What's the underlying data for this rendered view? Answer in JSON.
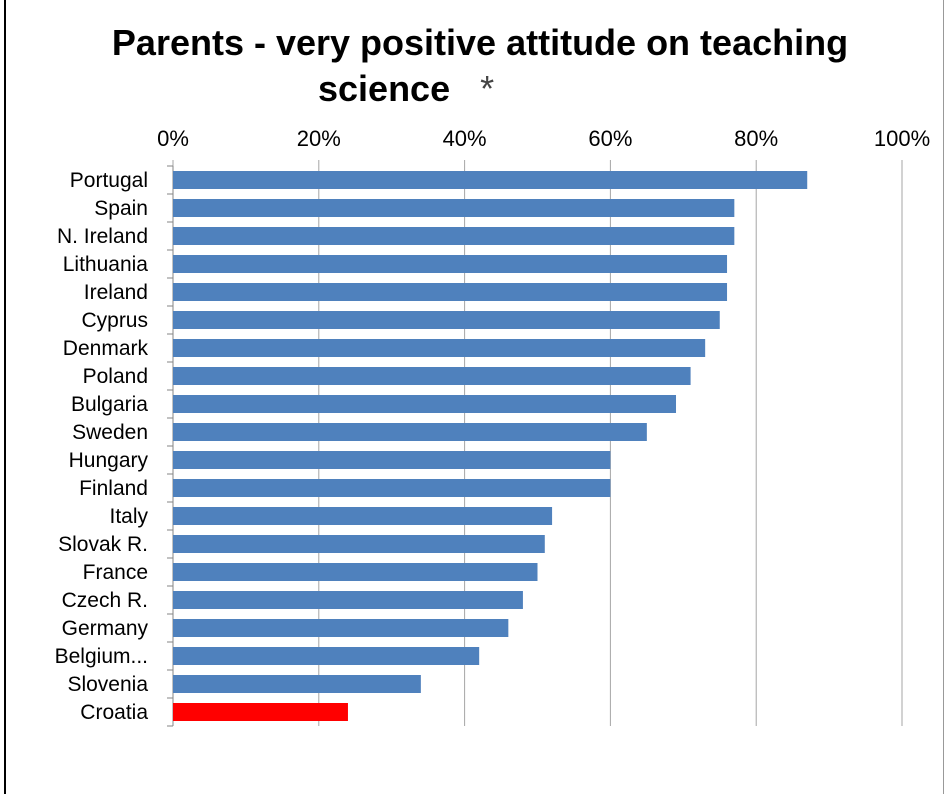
{
  "chart_data": {
    "type": "bar",
    "orientation": "horizontal",
    "title_line1": "Parents - very positive attitude on teaching",
    "title_line2": "science",
    "title_mark": "*",
    "xlim": [
      0,
      100
    ],
    "x_ticks": [
      "0%",
      "20%",
      "40%",
      "60%",
      "80%",
      "100%"
    ],
    "grid": true,
    "categories": [
      "Portugal",
      "Spain",
      "N. Ireland",
      "Lithuania",
      "Ireland",
      "Cyprus",
      "Denmark",
      "Poland",
      "Bulgaria",
      "Sweden",
      "Hungary",
      "Finland",
      "Italy",
      "Slovak R.",
      "France",
      "Czech R.",
      "Germany",
      "Belgium...",
      "Slovenia",
      "Croatia"
    ],
    "values": [
      87,
      77,
      77,
      76,
      76,
      75,
      73,
      71,
      69,
      65,
      60,
      60,
      52,
      51,
      50,
      48,
      46,
      42,
      34,
      24
    ],
    "colors": {
      "default": "#4f81bd",
      "highlight": "#ff0000",
      "highlight_category": "Croatia",
      "grid": "#a6a6a6"
    }
  }
}
